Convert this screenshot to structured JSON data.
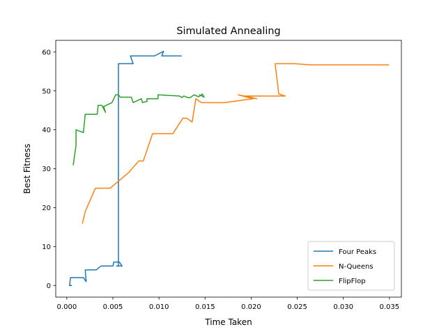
{
  "chart_data": {
    "type": "line",
    "title": "Simulated Annealing",
    "xlabel": "Time Taken",
    "ylabel": "Best Fitness",
    "xlim": [
      -0.0012,
      0.0363
    ],
    "ylim": [
      -3,
      63
    ],
    "xticks": [
      0.0,
      0.005,
      0.01,
      0.015,
      0.02,
      0.025,
      0.03,
      0.035
    ],
    "xtick_labels": [
      "0.000",
      "0.005",
      "0.010",
      "0.015",
      "0.020",
      "0.025",
      "0.030",
      "0.035"
    ],
    "yticks": [
      0,
      10,
      20,
      30,
      40,
      50,
      60
    ],
    "ytick_labels": [
      "0",
      "10",
      "20",
      "30",
      "40",
      "50",
      "60"
    ],
    "grid": false,
    "legend_position": "lower-right",
    "series": [
      {
        "name": "Four Peaks",
        "color": "#1f77b4",
        "points": [
          [
            0.0005,
            0
          ],
          [
            0.0003,
            0
          ],
          [
            0.0004,
            2
          ],
          [
            0.0018,
            2
          ],
          [
            0.0021,
            1
          ],
          [
            0.002,
            4
          ],
          [
            0.0032,
            4
          ],
          [
            0.0037,
            5
          ],
          [
            0.0047,
            5
          ],
          [
            0.0044,
            5
          ],
          [
            0.005,
            5
          ],
          [
            0.0051,
            6
          ],
          [
            0.0057,
            6
          ],
          [
            0.006,
            5
          ],
          [
            0.0054,
            5
          ],
          [
            0.0056,
            5
          ],
          [
            0.0056,
            57
          ],
          [
            0.0072,
            57
          ],
          [
            0.0069,
            59
          ],
          [
            0.0073,
            59
          ],
          [
            0.0095,
            59
          ],
          [
            0.0105,
            60.2
          ],
          [
            0.0103,
            59
          ],
          [
            0.0124,
            59
          ]
        ]
      },
      {
        "name": "N-Queens",
        "color": "#ff7f0e",
        "points": [
          [
            0.0017,
            16
          ],
          [
            0.002,
            19
          ],
          [
            0.0031,
            25
          ],
          [
            0.0047,
            25
          ],
          [
            0.0057,
            27
          ],
          [
            0.0067,
            29
          ],
          [
            0.0078,
            32
          ],
          [
            0.0083,
            32
          ],
          [
            0.0093,
            39
          ],
          [
            0.0115,
            39
          ],
          [
            0.0126,
            43
          ],
          [
            0.013,
            43
          ],
          [
            0.0136,
            42
          ],
          [
            0.014,
            48
          ],
          [
            0.0146,
            47
          ],
          [
            0.0171,
            47
          ],
          [
            0.0202,
            48
          ],
          [
            0.0186,
            49
          ],
          [
            0.0206,
            48
          ],
          [
            0.0194,
            48.7
          ],
          [
            0.0237,
            48.7
          ],
          [
            0.023,
            49.2
          ],
          [
            0.0226,
            57
          ],
          [
            0.0247,
            57
          ],
          [
            0.0265,
            56.7
          ],
          [
            0.0349,
            56.7
          ]
        ]
      },
      {
        "name": "FlipFlop",
        "color": "#2ca02c",
        "points": [
          [
            0.0007,
            31
          ],
          [
            0.001,
            36
          ],
          [
            0.001,
            40
          ],
          [
            0.0018,
            39.3
          ],
          [
            0.002,
            44
          ],
          [
            0.0033,
            44
          ],
          [
            0.0034,
            46.3
          ],
          [
            0.0038,
            46.3
          ],
          [
            0.0042,
            44.5
          ],
          [
            0.004,
            46
          ],
          [
            0.0049,
            47
          ],
          [
            0.0053,
            49
          ],
          [
            0.0056,
            49
          ],
          [
            0.0058,
            48.4
          ],
          [
            0.007,
            48.4
          ],
          [
            0.0072,
            47
          ],
          [
            0.0081,
            48
          ],
          [
            0.0082,
            47
          ],
          [
            0.0087,
            47.3
          ],
          [
            0.0087,
            48
          ],
          [
            0.0099,
            48
          ],
          [
            0.0099,
            49
          ],
          [
            0.0122,
            48.7
          ],
          [
            0.0125,
            48.3
          ],
          [
            0.0127,
            48.7
          ],
          [
            0.0131,
            48.3
          ],
          [
            0.0134,
            48.3
          ],
          [
            0.0138,
            49
          ],
          [
            0.0143,
            48.5
          ],
          [
            0.0147,
            49.2
          ],
          [
            0.0149,
            48.4
          ],
          [
            0.0144,
            49
          ]
        ]
      }
    ]
  }
}
